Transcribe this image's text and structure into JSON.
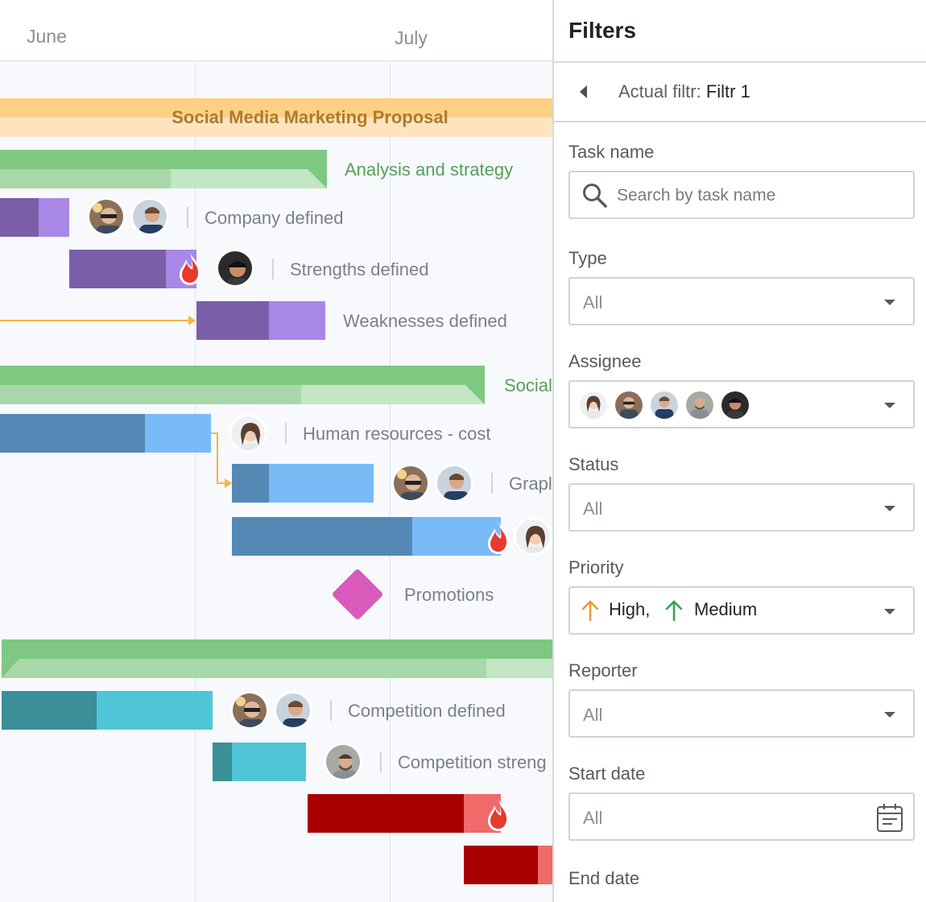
{
  "gantt": {
    "months": [
      "June",
      "July"
    ],
    "project_title": "Social Media Marketing Proposal",
    "groups": {
      "analysis": "Analysis and strategy",
      "social": "Social"
    },
    "tasks": {
      "company_defined": "Company defined",
      "strengths_defined": "Strengths defined",
      "weaknesses_defined": "Weaknesses defined",
      "human_resources": "Human resources - cost",
      "graphics": "Grapl",
      "promotions": "Promotions",
      "competition_defined": "Competition defined",
      "competition_strengths": "Competition streng"
    },
    "colors": {
      "purple_dark": "#7a5fa8",
      "purple_light": "#a987e6",
      "blue_dark": "#5488b5",
      "blue_light": "#78bbf7",
      "teal_dark": "#3a8f98",
      "teal_light": "#4fc6d8",
      "red_dark": "#a80000",
      "red_light": "#f06a6a",
      "summary_green": "#7fc881",
      "milestone_pink": "#d95bbc",
      "proposal_orange": "#ffcf85"
    }
  },
  "filters": {
    "title": "Filters",
    "actual_prefix": "Actual filtr:",
    "actual_name": "Filtr 1",
    "task_name": {
      "label": "Task name",
      "placeholder": "Search by task name"
    },
    "type": {
      "label": "Type",
      "value": "All"
    },
    "assignee": {
      "label": "Assignee",
      "icon": "avatars",
      "count": 5
    },
    "status": {
      "label": "Status",
      "value": "All"
    },
    "priority": {
      "label": "Priority",
      "items": [
        {
          "label": "High,",
          "color": "#f0973a",
          "icon": "arrow-up-icon"
        },
        {
          "label": "Medium",
          "color": "#2ea44f",
          "icon": "arrow-up-icon"
        }
      ]
    },
    "reporter": {
      "label": "Reporter",
      "value": "All"
    },
    "start_date": {
      "label": "Start date",
      "value": "All"
    },
    "end_date": {
      "label": "End date"
    }
  }
}
